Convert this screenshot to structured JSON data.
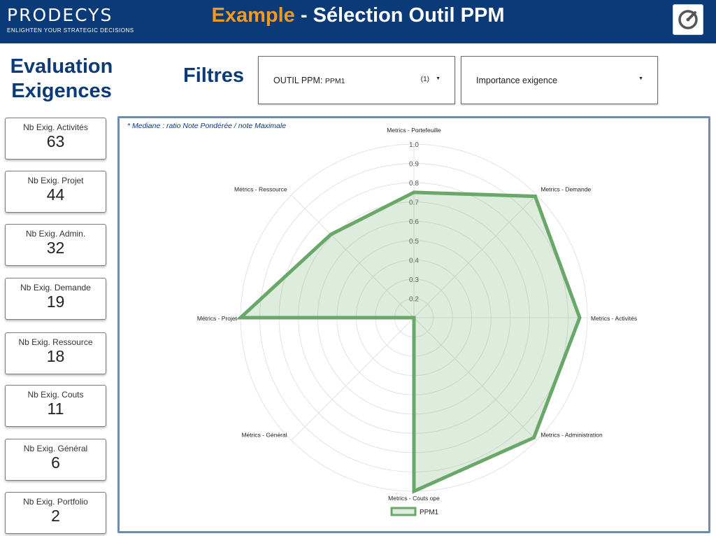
{
  "header": {
    "logo_name": "PRODECYS",
    "logo_tagline": "ENLIGHTEN YOUR STRATEGIC DECISIONS",
    "title_accent": "Example",
    "title_rest": " - Sélection Outil PPM"
  },
  "sidebar": {
    "title_line1": "Evaluation",
    "title_line2": "Exigences",
    "cards": [
      {
        "label": "Nb Exig. Activités",
        "value": "63"
      },
      {
        "label": "Nb Exig. Projet",
        "value": "44"
      },
      {
        "label": "Nb Exig. Admin.",
        "value": "32"
      },
      {
        "label": "Nb Exig. Demande",
        "value": "19"
      },
      {
        "label": "Nb Exig. Ressource",
        "value": "18"
      },
      {
        "label": "Nb Exig. Couts",
        "value": "11"
      },
      {
        "label": "Nb Exig. Général",
        "value": "6"
      },
      {
        "label": "Nb Exig. Portfolio",
        "value": "2"
      }
    ]
  },
  "filters": {
    "title": "Filtres",
    "outil": {
      "label": "OUTIL PPM: ",
      "value": "PPM1",
      "count": "(1)"
    },
    "importance": {
      "label": "Importance exigence"
    }
  },
  "chart": {
    "note": "* Mediane : ratio Note Pondérée / note Maximale"
  },
  "chart_data": {
    "type": "radar",
    "axes": [
      "Metrics - Portefeuille",
      "Metrics - Demande",
      "Metrics - Activités",
      "Metrics - Administration",
      "Metrics - Couts ope",
      "Métrics - Général",
      "Métrics - Projet",
      "Métrics - Ressource"
    ],
    "r_ticks": [
      "0.2",
      "0.3",
      "0.4",
      "0.5",
      "0.6",
      "0.7",
      "0.8",
      "0.9",
      "1.0"
    ],
    "r_range": [
      0.1,
      1.0
    ],
    "series": [
      {
        "name": "PPM1",
        "values": [
          0.75,
          0.99,
          0.96,
          0.98,
          1.0,
          0.1,
          1.0,
          0.71
        ],
        "color": "#6aa86a"
      }
    ],
    "legend_position": "bottom"
  }
}
